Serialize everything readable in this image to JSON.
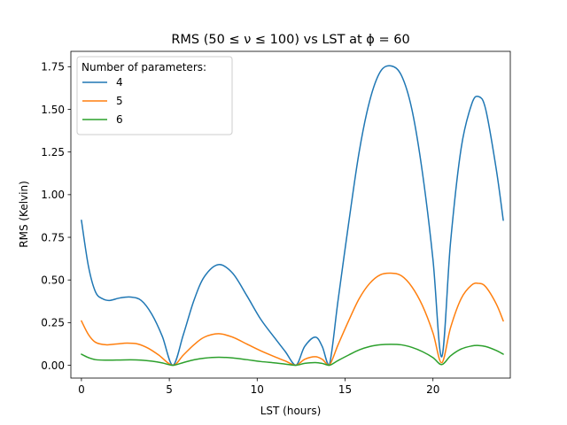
{
  "chart_data": {
    "type": "line",
    "title": "RMS (50 ≤ ν ≤ 100) vs LST at ϕ = 60",
    "xlabel": "LST (hours)",
    "ylabel": "RMS (Kelvin)",
    "xlim": [
      -0.6,
      24.4
    ],
    "ylim": [
      -0.075,
      1.84
    ],
    "xticks": [
      0,
      5,
      10,
      15,
      20
    ],
    "xtick_labels": [
      "0",
      "5",
      "10",
      "15",
      "20"
    ],
    "yticks": [
      0.0,
      0.25,
      0.5,
      0.75,
      1.0,
      1.25,
      1.5,
      1.75
    ],
    "ytick_labels": [
      "0.00",
      "0.25",
      "0.50",
      "0.75",
      "1.00",
      "1.25",
      "1.50",
      "1.75"
    ],
    "grid": false,
    "legend": {
      "title": "Number of parameters:",
      "placement": "top-left"
    },
    "series": [
      {
        "name": "4",
        "color": "#1f77b4",
        "points": [
          [
            0,
            0.85
          ],
          [
            0.4,
            0.58
          ],
          [
            0.8,
            0.43
          ],
          [
            1.2,
            0.39
          ],
          [
            1.6,
            0.38
          ],
          [
            2.2,
            0.395
          ],
          [
            2.8,
            0.4
          ],
          [
            3.4,
            0.38
          ],
          [
            4.0,
            0.3
          ],
          [
            4.6,
            0.17
          ],
          [
            5.2,
            0.0
          ],
          [
            5.8,
            0.18
          ],
          [
            6.4,
            0.38
          ],
          [
            7.0,
            0.52
          ],
          [
            7.8,
            0.59
          ],
          [
            8.6,
            0.54
          ],
          [
            9.4,
            0.41
          ],
          [
            10.2,
            0.27
          ],
          [
            11.0,
            0.16
          ],
          [
            11.6,
            0.08
          ],
          [
            12.2,
            0.0
          ],
          [
            12.7,
            0.11
          ],
          [
            13.3,
            0.165
          ],
          [
            13.7,
            0.11
          ],
          [
            14.1,
            0.0
          ],
          [
            14.6,
            0.38
          ],
          [
            15.2,
            0.83
          ],
          [
            15.8,
            1.25
          ],
          [
            16.4,
            1.55
          ],
          [
            17.0,
            1.72
          ],
          [
            17.6,
            1.755
          ],
          [
            18.2,
            1.7
          ],
          [
            18.8,
            1.5
          ],
          [
            19.4,
            1.13
          ],
          [
            20.0,
            0.62
          ],
          [
            20.5,
            0.05
          ],
          [
            21.0,
            0.72
          ],
          [
            21.6,
            1.27
          ],
          [
            22.2,
            1.53
          ],
          [
            22.6,
            1.575
          ],
          [
            23.0,
            1.5
          ],
          [
            23.6,
            1.15
          ],
          [
            24.0,
            0.85
          ]
        ]
      },
      {
        "name": "5",
        "color": "#ff7f0e",
        "points": [
          [
            0,
            0.26
          ],
          [
            0.4,
            0.18
          ],
          [
            0.8,
            0.135
          ],
          [
            1.4,
            0.12
          ],
          [
            2.0,
            0.125
          ],
          [
            2.6,
            0.13
          ],
          [
            3.2,
            0.125
          ],
          [
            3.8,
            0.1
          ],
          [
            4.4,
            0.06
          ],
          [
            5.2,
            0.0
          ],
          [
            5.8,
            0.06
          ],
          [
            6.4,
            0.12
          ],
          [
            7.0,
            0.165
          ],
          [
            7.8,
            0.185
          ],
          [
            8.6,
            0.165
          ],
          [
            9.4,
            0.125
          ],
          [
            10.2,
            0.085
          ],
          [
            11.0,
            0.05
          ],
          [
            11.6,
            0.025
          ],
          [
            12.2,
            0.0
          ],
          [
            12.7,
            0.035
          ],
          [
            13.3,
            0.05
          ],
          [
            13.7,
            0.035
          ],
          [
            14.1,
            0.0
          ],
          [
            14.6,
            0.12
          ],
          [
            15.2,
            0.26
          ],
          [
            15.8,
            0.39
          ],
          [
            16.4,
            0.48
          ],
          [
            17.0,
            0.53
          ],
          [
            17.6,
            0.54
          ],
          [
            18.2,
            0.525
          ],
          [
            18.8,
            0.46
          ],
          [
            19.4,
            0.35
          ],
          [
            20.0,
            0.19
          ],
          [
            20.5,
            0.015
          ],
          [
            21.0,
            0.22
          ],
          [
            21.6,
            0.39
          ],
          [
            22.2,
            0.47
          ],
          [
            22.6,
            0.48
          ],
          [
            23.0,
            0.46
          ],
          [
            23.6,
            0.36
          ],
          [
            24.0,
            0.26
          ]
        ]
      },
      {
        "name": "6",
        "color": "#2ca02c",
        "points": [
          [
            0,
            0.065
          ],
          [
            0.4,
            0.045
          ],
          [
            0.8,
            0.033
          ],
          [
            1.4,
            0.03
          ],
          [
            2.2,
            0.031
          ],
          [
            2.8,
            0.032
          ],
          [
            3.4,
            0.03
          ],
          [
            4.0,
            0.024
          ],
          [
            4.6,
            0.014
          ],
          [
            5.2,
            0.0
          ],
          [
            5.8,
            0.016
          ],
          [
            6.4,
            0.032
          ],
          [
            7.0,
            0.042
          ],
          [
            7.8,
            0.047
          ],
          [
            8.6,
            0.043
          ],
          [
            9.4,
            0.033
          ],
          [
            10.2,
            0.022
          ],
          [
            11.0,
            0.014
          ],
          [
            11.6,
            0.007
          ],
          [
            12.2,
            0.0
          ],
          [
            12.7,
            0.011
          ],
          [
            13.3,
            0.016
          ],
          [
            13.7,
            0.011
          ],
          [
            14.1,
            0.0
          ],
          [
            14.6,
            0.028
          ],
          [
            15.2,
            0.06
          ],
          [
            15.8,
            0.09
          ],
          [
            16.4,
            0.11
          ],
          [
            17.0,
            0.12
          ],
          [
            17.6,
            0.123
          ],
          [
            18.2,
            0.12
          ],
          [
            18.8,
            0.105
          ],
          [
            19.4,
            0.08
          ],
          [
            20.0,
            0.045
          ],
          [
            20.5,
            0.004
          ],
          [
            21.0,
            0.055
          ],
          [
            21.6,
            0.095
          ],
          [
            22.2,
            0.113
          ],
          [
            22.6,
            0.116
          ],
          [
            23.0,
            0.11
          ],
          [
            23.6,
            0.087
          ],
          [
            24.0,
            0.065
          ]
        ]
      }
    ]
  }
}
